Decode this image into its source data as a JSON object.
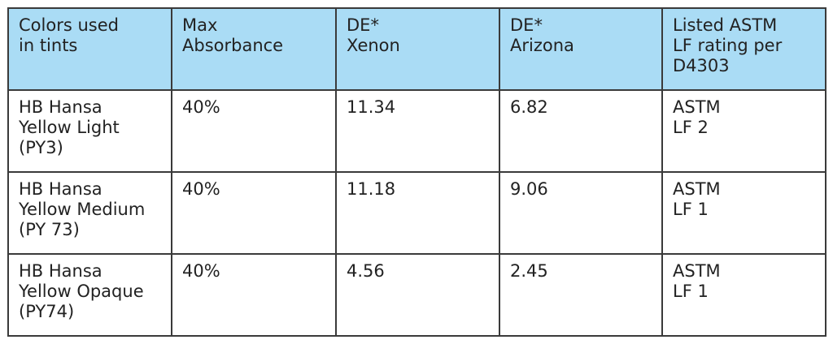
{
  "table": {
    "header": [
      [
        "Colors used",
        "in tints"
      ],
      [
        "Max",
        "Absorbance"
      ],
      [
        "DE*",
        "Xenon"
      ],
      [
        "DE*",
        "Arizona"
      ],
      [
        "Listed ASTM",
        "LF rating per",
        "D4303"
      ]
    ],
    "rows": [
      [
        [
          "HB Hansa",
          "Yellow Light",
          "(PY3)"
        ],
        [
          "40%"
        ],
        [
          "11.34"
        ],
        [
          "6.82"
        ],
        [
          "ASTM",
          "LF 2"
        ]
      ],
      [
        [
          "HB Hansa",
          "Yellow Medium",
          "(PY 73)"
        ],
        [
          "40%"
        ],
        [
          "11.18"
        ],
        [
          "9.06"
        ],
        [
          "ASTM",
          "LF 1"
        ]
      ],
      [
        [
          "HB Hansa",
          "Yellow Opaque",
          "(PY74)"
        ],
        [
          "40%"
        ],
        [
          "4.56"
        ],
        [
          "2.45"
        ],
        [
          "ASTM",
          "LF 1"
        ]
      ]
    ]
  }
}
